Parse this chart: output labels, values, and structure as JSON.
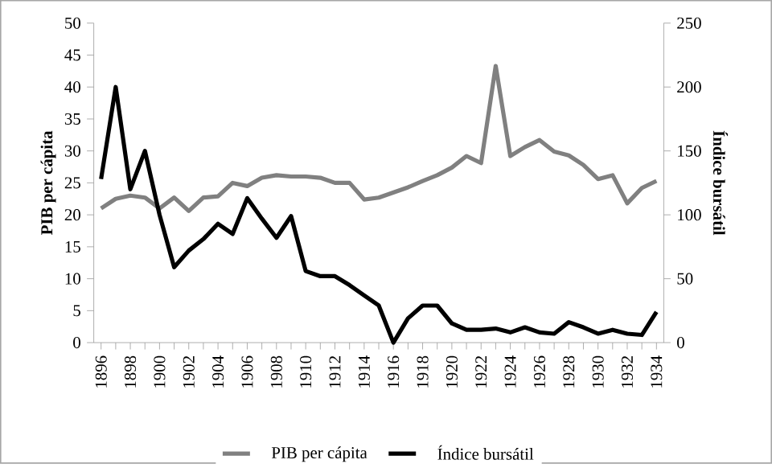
{
  "chart_data": {
    "type": "line",
    "ylabel": "PIB per cápita",
    "y2label": "Índice bursátil",
    "categories": [
      "1896",
      null,
      "1898",
      null,
      "1900",
      null,
      "1902",
      null,
      "1904",
      null,
      "1906",
      null,
      "1908",
      null,
      "1910",
      null,
      "1912",
      null,
      "1914",
      null,
      "1916",
      null,
      "1918",
      null,
      "1920",
      null,
      "1922",
      null,
      "1924",
      null,
      "1926",
      null,
      "1928",
      null,
      "1930",
      null,
      "1932",
      null,
      "1934"
    ],
    "series": [
      {
        "name": "PIB per cápita",
        "color": "#808080",
        "values": [
          21.0,
          22.5,
          23.0,
          22.7,
          21.0,
          22.7,
          20.6,
          22.7,
          22.9,
          25.0,
          24.5,
          25.8,
          26.2,
          26.0,
          26.0,
          25.8,
          25.0,
          25.0,
          22.4,
          22.7,
          23.5,
          24.3,
          25.3,
          26.2,
          27.4,
          29.2,
          28.1,
          43.3,
          29.2,
          30.6,
          31.7,
          29.9,
          29.3,
          27.8,
          25.6,
          26.2,
          21.8,
          24.2,
          25.3
        ]
      },
      {
        "name": "Índice bursátil",
        "color": "#000000",
        "axis": "y2",
        "values": [
          128,
          200,
          120,
          150,
          100,
          59,
          72,
          81,
          93,
          85,
          113,
          97,
          82,
          99,
          56,
          52,
          52,
          45,
          37,
          29,
          0,
          19,
          29,
          29,
          15,
          10,
          10,
          11,
          8,
          12,
          8,
          7,
          16,
          12,
          7,
          10,
          7,
          6,
          24
        ]
      }
    ],
    "ylim": [
      0,
      50
    ],
    "yticks": [
      0,
      5,
      10,
      15,
      20,
      25,
      30,
      35,
      40,
      45,
      50
    ],
    "y2lim": [
      0,
      250
    ],
    "y2ticks": [
      0,
      50,
      100,
      150,
      200,
      250
    ],
    "grid": false,
    "legend": "bottom",
    "marker": "none",
    "line_style": "solid"
  }
}
